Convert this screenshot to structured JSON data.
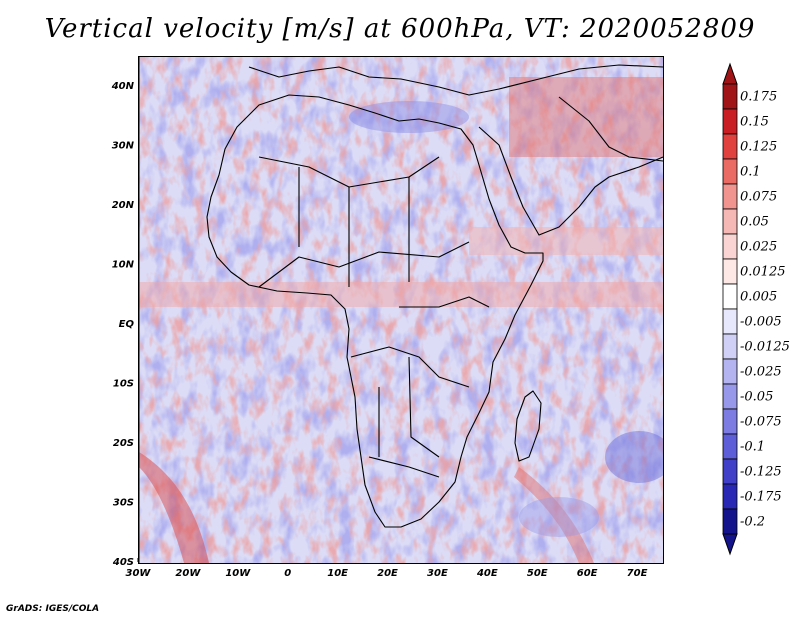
{
  "title": "Vertical velocity [m/s] at 600hPa, VT: 2020052809",
  "credit": "GrADS: IGES/COLA",
  "map": {
    "region": "Africa",
    "lon_range": [
      -30,
      75
    ],
    "lat_range": [
      -40,
      45
    ],
    "lat_labels": [
      "40N",
      "30N",
      "20N",
      "10N",
      "EQ",
      "10S",
      "20S",
      "30S",
      "40S"
    ],
    "lat_values": [
      40,
      30,
      20,
      10,
      0,
      -10,
      -20,
      -30,
      -40
    ],
    "lon_labels": [
      "30W",
      "20W",
      "10W",
      "0",
      "10E",
      "20E",
      "30E",
      "40E",
      "50E",
      "60E",
      "70E"
    ],
    "lon_values": [
      -30,
      -20,
      -10,
      0,
      10,
      20,
      30,
      40,
      50,
      60,
      70
    ]
  },
  "colorbar": {
    "labels": [
      "0.175",
      "0.15",
      "0.125",
      "0.1",
      "0.075",
      "0.05",
      "0.025",
      "0.0125",
      "0.005",
      "-0.005",
      "-0.0125",
      "-0.025",
      "-0.05",
      "-0.075",
      "-0.1",
      "-0.125",
      "-0.175",
      "-0.2"
    ],
    "colors": [
      "#a01418",
      "#c81e24",
      "#e0403e",
      "#ea6a64",
      "#f19490",
      "#f6b8b4",
      "#fad4d2",
      "#fde8e6",
      "#ffffff",
      "#e8e8fc",
      "#d0d0f6",
      "#b4b4f0",
      "#9898ea",
      "#7c7ce2",
      "#5e5ed8",
      "#4040c8",
      "#2828b4",
      "#14148c"
    ]
  },
  "chart_data": {
    "type": "heatmap",
    "title": "Vertical velocity [m/s] at 600hPa, VT: 2020052809",
    "variable": "Vertical velocity",
    "units": "m/s",
    "level": "600hPa",
    "valid_time": "2020052809",
    "x_range": [
      -30,
      75
    ],
    "y_range": [
      -40,
      45
    ],
    "color_levels": [
      0.175,
      0.15,
      0.125,
      0.1,
      0.075,
      0.05,
      0.025,
      0.0125,
      0.005,
      -0.005,
      -0.0125,
      -0.025,
      -0.05,
      -0.075,
      -0.1,
      -0.125,
      -0.175,
      -0.2
    ]
  }
}
